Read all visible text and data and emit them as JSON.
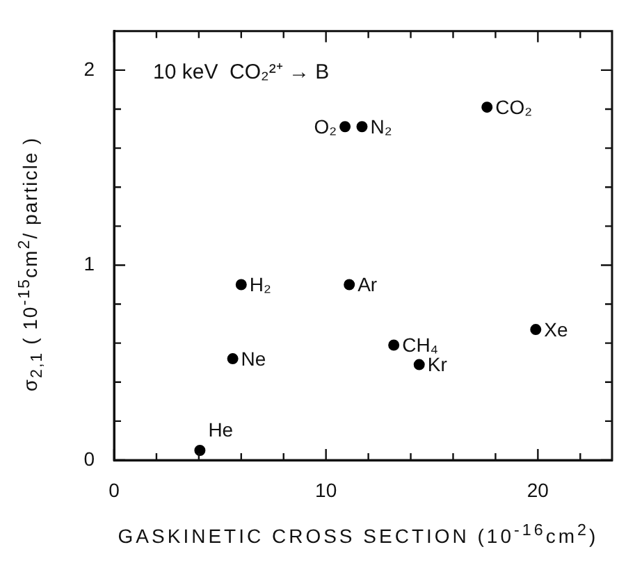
{
  "chart_data": {
    "type": "scatter",
    "xlabel": "GASKINETIC CROSS SECTION (10$^{-16}$cm$^{2}$)",
    "ylabel": "σ$_{2,1}$ ( 10$^{-15}$cm$^{2}$/ particle )",
    "x": [
      4.05,
      5.6,
      6.0,
      11.1,
      13.2,
      14.4,
      19.9,
      10.9,
      11.7,
      17.6
    ],
    "series": [
      {
        "color": "#000000",
        "values": [
          0.05,
          0.52,
          0.9,
          0.9,
          0.59,
          0.49,
          0.67,
          1.71,
          1.71,
          1.81
        ]
      }
    ],
    "marker": "circle",
    "grid": false,
    "legend": false,
    "xlim": [
      0,
      23.5
    ],
    "xticks": [
      0,
      {
        "value": 2,
        "label": null
      },
      {
        "value": 4,
        "label": null
      },
      {
        "value": 6,
        "label": null
      },
      {
        "value": 8,
        "label": null
      },
      10,
      {
        "value": 12,
        "label": null
      },
      {
        "value": 14,
        "label": null
      },
      {
        "value": 16,
        "label": null
      },
      {
        "value": 18,
        "label": null
      },
      20,
      {
        "value": 22,
        "label": null
      }
    ],
    "ylim": [
      0,
      2.2
    ],
    "yticks": [
      0,
      {
        "value": 0.2,
        "label": null
      },
      {
        "value": 0.4,
        "label": null
      },
      {
        "value": 0.6,
        "label": null
      },
      {
        "value": 0.8,
        "label": null
      },
      1,
      {
        "value": 1.2,
        "label": null
      },
      {
        "value": 1.4,
        "label": null
      },
      {
        "value": 1.6,
        "label": null
      },
      {
        "value": 1.8,
        "label": null
      },
      2
    ],
    "annotations": [
      "10 keV  CO₂²⁺ → B",
      {
        "text": "He",
        "x": 4.05,
        "y": 0.05
      },
      {
        "text": "Ne",
        "x": 5.6,
        "y": 0.52
      },
      {
        "text": "H₂",
        "x": 6.0,
        "y": 0.9
      },
      {
        "text": "Ar",
        "x": 11.1,
        "y": 0.9
      },
      {
        "text": "CH₄",
        "x": 13.2,
        "y": 0.59
      },
      {
        "text": "Kr",
        "x": 14.4,
        "y": 0.49
      },
      {
        "text": "Xe",
        "x": 19.9,
        "y": 0.67
      },
      {
        "text": "O₂",
        "x": 10.9,
        "y": 1.71
      },
      {
        "text": "N₂",
        "x": 11.7,
        "y": 1.71
      },
      {
        "text": "CO₂",
        "x": 17.6,
        "y": 1.81
      }
    ]
  }
}
